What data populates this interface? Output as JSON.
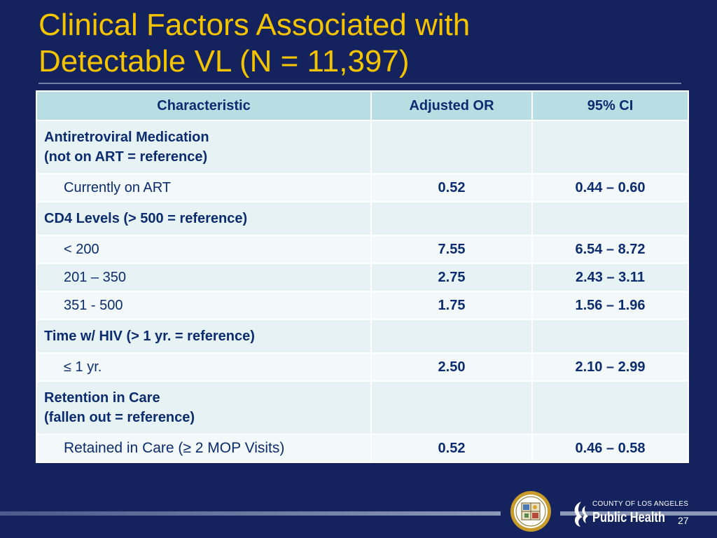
{
  "slide": {
    "title_line1": "Clinical Factors Associated with",
    "title_line2": "Detectable VL (N = 11,397)",
    "page_number": "27"
  },
  "table": {
    "headers": [
      "Characteristic",
      "Adjusted OR",
      "95% CI"
    ],
    "rows": [
      {
        "label": "Antiretroviral Medication",
        "label2": "(not on ART = reference)",
        "or": "",
        "ci": ""
      },
      {
        "label": "Currently on ART",
        "or": "0.52",
        "ci": "0.44 – 0.60"
      },
      {
        "label": "CD4 Levels (> 500 = reference)",
        "or": "",
        "ci": ""
      },
      {
        "label": "< 200",
        "or": "7.55",
        "ci": "6.54 – 8.72"
      },
      {
        "label": "201 – 350",
        "or": "2.75",
        "ci": "2.43 – 3.11"
      },
      {
        "label": "351 - 500",
        "or": "1.75",
        "ci": "1.56 – 1.96"
      },
      {
        "label": "Time w/ HIV (> 1 yr. = reference)",
        "or": "",
        "ci": ""
      },
      {
        "label": "≤ 1 yr.",
        "or": "2.50",
        "ci": "2.10 – 2.99"
      },
      {
        "label": "Retention in Care",
        "label2": "(fallen out = reference)",
        "or": "",
        "ci": ""
      },
      {
        "label": "Retained in Care (≥ 2 MOP Visits)",
        "or": "0.52",
        "ci": "0.46 – 0.58"
      }
    ]
  },
  "logo": {
    "org_line": "COUNTY OF LOS ANGELES",
    "name": "Public Health"
  },
  "colors": {
    "background": "#14235e",
    "title": "#f5c400",
    "header_fill": "#b8dee4",
    "text": "#0b2c6e"
  }
}
